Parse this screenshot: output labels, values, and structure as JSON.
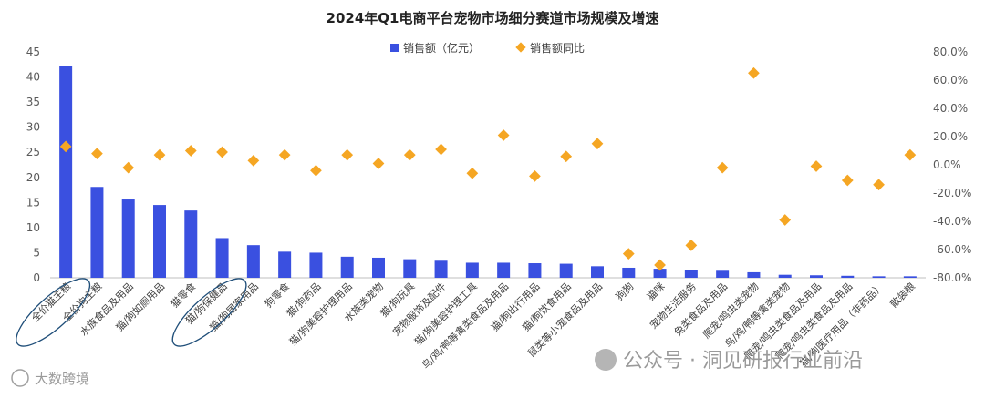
{
  "chart_data": {
    "type": "bar",
    "title": "2024年Q1电商平台宠物市场细分赛道市场规模及增速",
    "categories": [
      "全价猫主粮",
      "全价狗主粮",
      "水族食品及用品",
      "猫/狗如厕用品",
      "猫零食",
      "猫/狗保健品",
      "猫/狗居家用品",
      "狗零食",
      "猫/狗药品",
      "猫/狗美容护理用品",
      "水族类宠物",
      "猫/狗玩具",
      "宠物服饰及配件",
      "猫/狗美容护理工具",
      "鸟/鸡/鸭等禽类食品及用品",
      "猫/狗出行用品",
      "猫/狗饮食用品",
      "鼠类等小宠食品及用品",
      "狗狗",
      "猫咪",
      "宠物生活服务",
      "兔类食品及用品",
      "爬宠/鸣虫类宠物",
      "鸟/鸡/鸭等禽类宠物",
      "爬宠/鸣虫类食品及用品",
      "爬宠/鸣虫类食品及用品",
      "猫/狗医疗用品（非药品）",
      "散装粮"
    ],
    "series": [
      {
        "name": "销售额（亿元）",
        "type": "bar",
        "axis": "left",
        "color": "#3a50e0",
        "values": [
          42.2,
          18.1,
          15.6,
          14.5,
          13.4,
          7.9,
          6.5,
          5.2,
          5.0,
          4.2,
          4.0,
          3.7,
          3.4,
          3.0,
          3.0,
          2.9,
          2.8,
          2.3,
          2.0,
          1.8,
          1.6,
          1.4,
          1.1,
          0.6,
          0.5,
          0.4,
          0.3,
          0.3
        ]
      },
      {
        "name": "销售额同比",
        "type": "scatter",
        "axis": "right",
        "color": "#f5a623",
        "values": [
          13,
          8,
          -2,
          7,
          10,
          9,
          3,
          7,
          -4,
          7,
          1,
          7,
          11,
          -6,
          21,
          -8,
          6,
          15,
          -63,
          -71,
          -57,
          -2,
          65,
          -39,
          -1,
          -11,
          -14,
          7
        ]
      }
    ],
    "y_left": {
      "min": 0,
      "max": 45,
      "step": 5,
      "ticks": [
        "0",
        "5",
        "10",
        "15",
        "20",
        "25",
        "30",
        "35",
        "40",
        "45"
      ]
    },
    "y_right": {
      "min": -80,
      "max": 80,
      "step": 20,
      "ticks": [
        "-80.0%",
        "-60.0%",
        "-40.0%",
        "-20.0%",
        "0.0%",
        "20.0%",
        "40.0%",
        "60.0%",
        "80.0%"
      ]
    },
    "legend_position": "top-center",
    "highlighted_categories": [
      "全价猫主粮",
      "猫/狗保健品"
    ],
    "grid": false
  },
  "watermarks": {
    "left": "大数跨境",
    "right": "公众号 · 洞见研报行业前沿"
  }
}
